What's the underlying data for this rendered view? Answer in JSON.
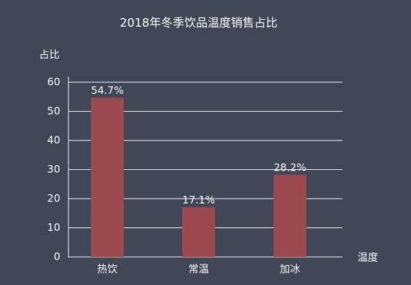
{
  "chart_data": {
    "type": "bar",
    "title": "2018年冬季饮品温度销售占比",
    "y_label": "占比",
    "x_label": "温度",
    "categories": [
      "热饮",
      "常温",
      "加冰"
    ],
    "values": [
      54.7,
      17.1,
      28.2
    ],
    "value_labels": [
      "54.7%",
      "17.1%",
      "28.2%"
    ],
    "color": "#9b4a50",
    "ylim": [
      0,
      60
    ],
    "yticks": [
      0,
      10,
      20,
      30,
      40,
      50,
      60
    ],
    "grid": true
  }
}
